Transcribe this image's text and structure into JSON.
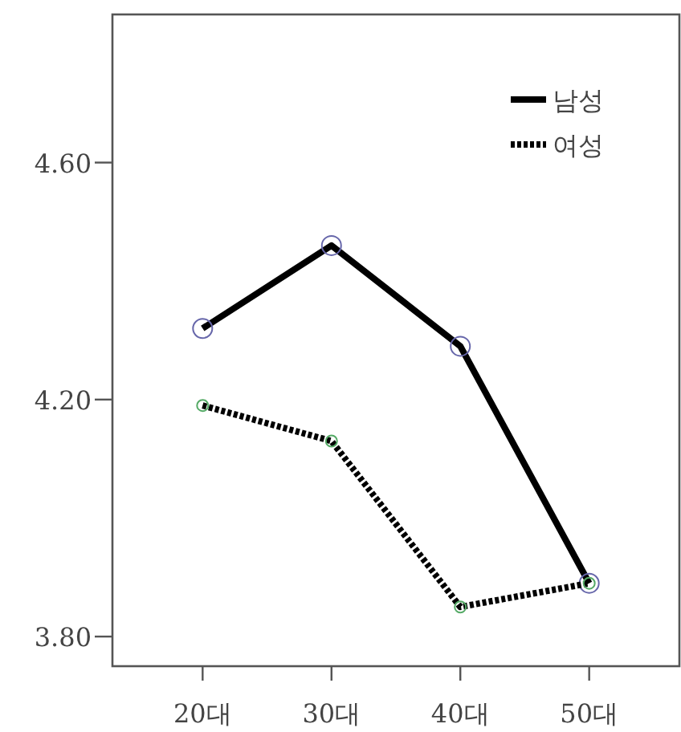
{
  "chart_data": {
    "type": "line",
    "categories": [
      "20대",
      "30대",
      "40대",
      "50대"
    ],
    "series": [
      {
        "name": "남성",
        "color": "#000000",
        "line_style": "solid",
        "values": [
          4.32,
          4.46,
          4.29,
          3.89
        ]
      },
      {
        "name": "여성",
        "color": "#000000",
        "line_style": "dotted",
        "values": [
          4.19,
          4.13,
          3.85,
          3.89
        ]
      }
    ],
    "ylim": [
      3.75,
      4.85
    ],
    "yticks": [
      {
        "value": 3.8,
        "label": "3.80"
      },
      {
        "value": 4.2,
        "label": "4.20"
      },
      {
        "value": 4.6,
        "label": "4.60"
      }
    ],
    "marker": "circle",
    "legend": "top right",
    "grid": false
  }
}
